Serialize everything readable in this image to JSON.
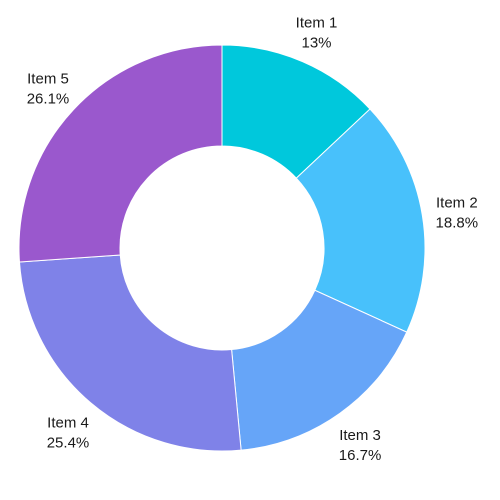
{
  "chart_data": {
    "type": "pie",
    "variant": "donut",
    "categories": [
      "Item 1",
      "Item 2",
      "Item 3",
      "Item 4",
      "Item 5"
    ],
    "values": [
      13,
      18.8,
      16.7,
      25.4,
      26.1
    ],
    "value_labels": [
      "13%",
      "18.8%",
      "16.7%",
      "25.4%",
      "26.1%"
    ],
    "colors": [
      "#00c8dc",
      "#48c1fb",
      "#66a5f8",
      "#7f82e8",
      "#9a58cd"
    ],
    "start_angle": "12 o'clock",
    "direction": "clockwise",
    "legend": "none"
  }
}
